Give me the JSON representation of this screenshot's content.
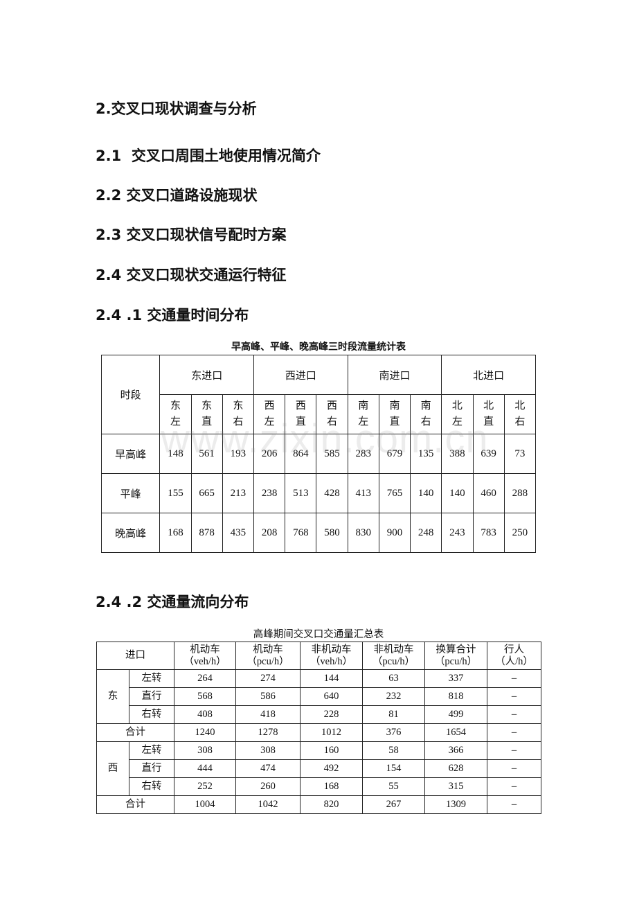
{
  "headings": [
    "2.交叉口现状调查与分析",
    "2.1  交叉口周围土地使用情况简介",
    "2.2 交叉口道路设施现状",
    "2.3 交叉口现状信号配时方案",
    "2.4 交叉口现状交通运行特征",
    "2.4 .1 交通量时间分布",
    "2.4 .2 交通量流向分布"
  ],
  "watermark": "www.zixin.com.cn",
  "table1": {
    "caption": "早高峰、平峰、晚高峰三时段流量统计表",
    "period_header": "时段",
    "groups": [
      "东进口",
      "西进口",
      "南进口",
      "北进口"
    ],
    "subcols": [
      [
        "东",
        "左"
      ],
      [
        "东",
        "直"
      ],
      [
        "东",
        "右"
      ],
      [
        "西",
        "左"
      ],
      [
        "西",
        "直"
      ],
      [
        "西",
        "右"
      ],
      [
        "南",
        "左"
      ],
      [
        "南",
        "直"
      ],
      [
        "南",
        "右"
      ],
      [
        "北",
        "左"
      ],
      [
        "北",
        "直"
      ],
      [
        "北",
        "右"
      ]
    ],
    "rows": [
      {
        "period": "早高峰",
        "values": [
          "148",
          "561",
          "193",
          "206",
          "864",
          "585",
          "283",
          "679",
          "135",
          "388",
          "639",
          "73"
        ]
      },
      {
        "period": "平峰",
        "values": [
          "155",
          "665",
          "213",
          "238",
          "513",
          "428",
          "413",
          "765",
          "140",
          "140",
          "460",
          "288"
        ]
      },
      {
        "period": "晚高峰",
        "values": [
          "168",
          "878",
          "435",
          "208",
          "768",
          "580",
          "830",
          "900",
          "248",
          "243",
          "783",
          "250"
        ]
      }
    ]
  },
  "table2": {
    "caption": "高峰期间交叉口交通量汇总表",
    "entry_header": "进口",
    "columns": [
      [
        "机动车",
        "（veh/h）"
      ],
      [
        "机动车",
        "（pcu/h）"
      ],
      [
        "非机动车",
        "（veh/h）"
      ],
      [
        "非机动车",
        "（pcu/h）"
      ],
      [
        "换算合计",
        "（pcu/h）"
      ],
      [
        "行人",
        "（人/h）"
      ]
    ],
    "total_label": "合计",
    "groups": [
      {
        "name": "东",
        "rows": [
          {
            "dir": "左转",
            "values": [
              "264",
              "274",
              "144",
              "63",
              "337",
              "–"
            ]
          },
          {
            "dir": "直行",
            "values": [
              "568",
              "586",
              "640",
              "232",
              "818",
              "–"
            ]
          },
          {
            "dir": "右转",
            "values": [
              "408",
              "418",
              "228",
              "81",
              "499",
              "–"
            ]
          }
        ],
        "total": [
          "1240",
          "1278",
          "1012",
          "376",
          "1654",
          "–"
        ]
      },
      {
        "name": "西",
        "rows": [
          {
            "dir": "左转",
            "values": [
              "308",
              "308",
              "160",
              "58",
              "366",
              "–"
            ]
          },
          {
            "dir": "直行",
            "values": [
              "444",
              "474",
              "492",
              "154",
              "628",
              "–"
            ]
          },
          {
            "dir": "右转",
            "values": [
              "252",
              "260",
              "168",
              "55",
              "315",
              "–"
            ]
          }
        ],
        "total": [
          "1004",
          "1042",
          "820",
          "267",
          "1309",
          "–"
        ]
      }
    ]
  }
}
